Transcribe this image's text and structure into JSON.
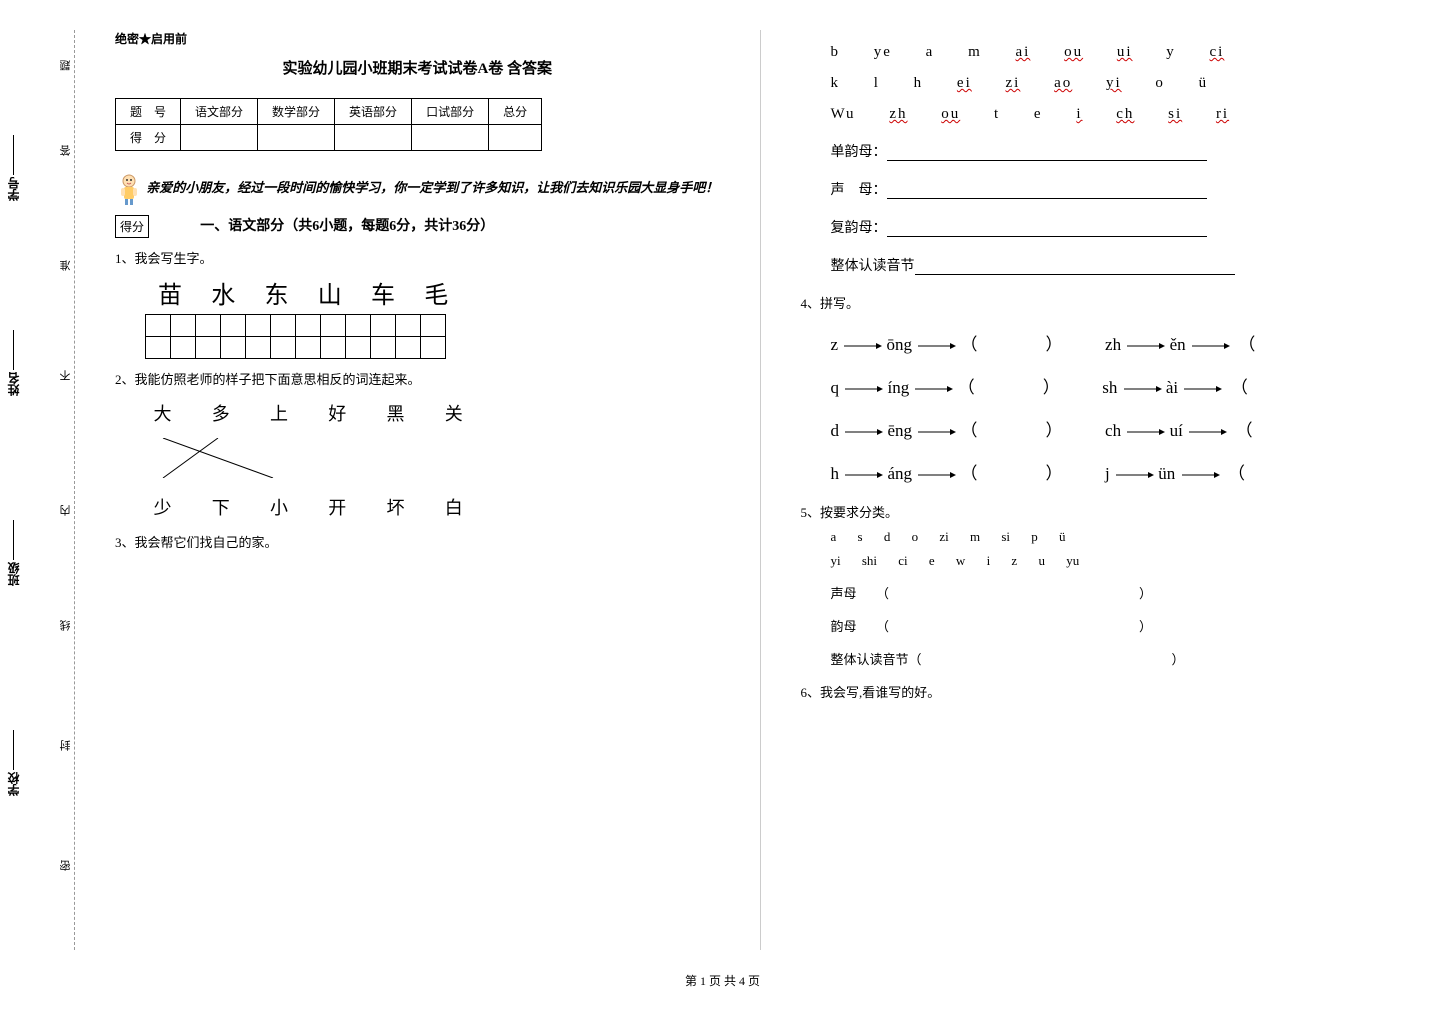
{
  "margin": {
    "labels": [
      "题",
      "答",
      "准",
      "不",
      "内",
      "线",
      "封",
      "密"
    ],
    "fields": [
      "学号",
      "姓名",
      "班级",
      "学校"
    ]
  },
  "header": {
    "secret": "绝密★启用前",
    "title": "实验幼儿园小班期末考试试卷A卷 含答案"
  },
  "scoreTable": {
    "headers": [
      "题　号",
      "语文部分",
      "数学部分",
      "英语部分",
      "口试部分",
      "总分"
    ],
    "row2": "得　分"
  },
  "intro": "亲爱的小朋友，经过一段时间的愉快学习，你一定学到了许多知识，让我们去知识乐园大显身手吧！",
  "defen": "得分",
  "section1": {
    "title": "一、语文部分（共6小题，每题6分，共计36分）",
    "q1": {
      "label": "1、我会写生字。",
      "chars": [
        "苗",
        "水",
        "东",
        "山",
        "车",
        "毛"
      ]
    },
    "q2": {
      "label": "2、我能仿照老师的样子把下面意思相反的词连起来。",
      "top": [
        "大",
        "多",
        "上",
        "好",
        "黑",
        "关"
      ],
      "bottom": [
        "少",
        "下",
        "小",
        "开",
        "坏",
        "白"
      ]
    },
    "q3": {
      "label": "3、我会帮它们找自己的家。",
      "rows": [
        [
          "b",
          "ye",
          "a",
          "m",
          "ai",
          "ou",
          "ui",
          "y",
          "ci"
        ],
        [
          "k",
          "l",
          "h",
          "ei",
          "zi",
          "ao",
          "yi",
          "o",
          "ü"
        ],
        [
          "Wu",
          "zh",
          "ou",
          "t",
          "e",
          "i",
          "ch",
          "si",
          "ri"
        ]
      ],
      "wavyIndices": [
        [
          4,
          5,
          6,
          8
        ],
        [
          3,
          4,
          5,
          6
        ],
        [
          1,
          2,
          5,
          6,
          7,
          8
        ]
      ],
      "categories": [
        "单韵母：",
        "声　母：",
        "复韵母：",
        "整体认读音节"
      ]
    },
    "q4": {
      "label": "4、拼写。",
      "rows": [
        {
          "l1": "z",
          "l2": "ōng",
          "r1": "zh",
          "r2": "ěn"
        },
        {
          "l1": "q",
          "l2": "íng",
          "r1": "sh",
          "r2": "ài"
        },
        {
          "l1": "d",
          "l2": "ēng",
          "r1": "ch",
          "r2": "uí"
        },
        {
          "l1": "h",
          "l2": "áng",
          "r1": "j",
          "r2": "ün"
        }
      ]
    },
    "q5": {
      "label": "5、按要求分类。",
      "row1": [
        "a",
        "s",
        "d",
        "o",
        "zi",
        "m",
        "si",
        "p",
        "ü"
      ],
      "row2": [
        "yi",
        "shi",
        "ci",
        "e",
        "w",
        "i",
        "z",
        "u",
        "yu"
      ],
      "cats": [
        "声母",
        "韵母",
        "整体认读音节"
      ]
    },
    "q6": {
      "label": "6、我会写,看谁写的好。"
    }
  },
  "footer": "第 1 页 共 4 页"
}
